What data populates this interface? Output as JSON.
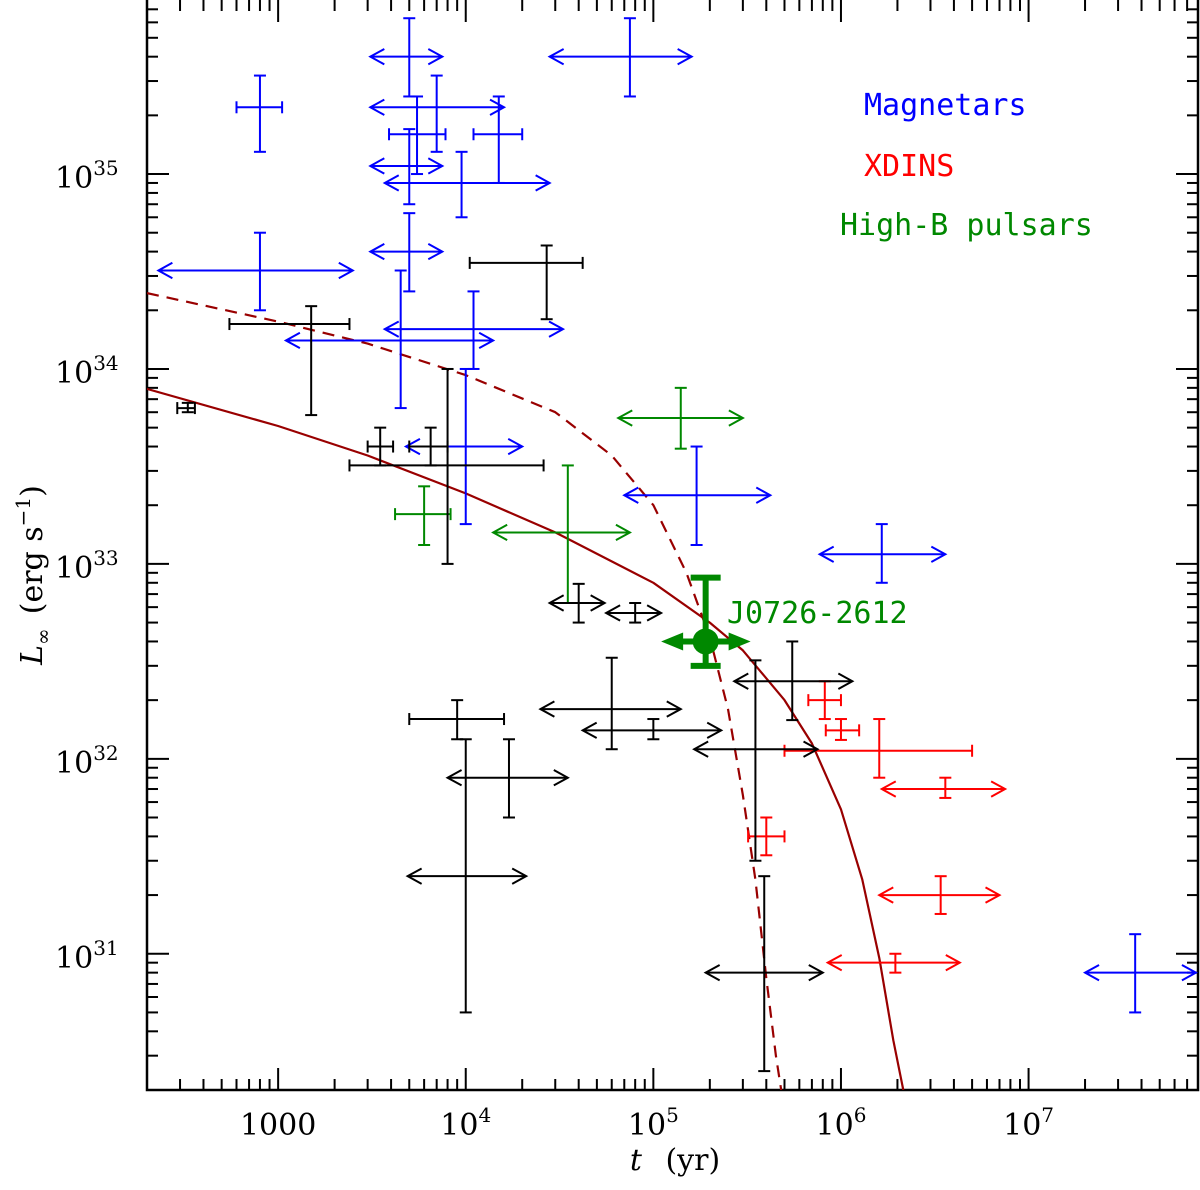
{
  "chart_data": {
    "type": "scatter",
    "xscale": "log",
    "yscale": "log",
    "xlim": [
      200,
      80000000
    ],
    "ylim": [
      2e+30,
      8e+35
    ],
    "xlabel": {
      "var": "t",
      "unit": "(yr)"
    },
    "ylabel": {
      "var": "L",
      "sub": "∞",
      "unit_prefix": "(erg s",
      "unit_exp": "−1",
      "unit_suffix": ")"
    },
    "x_ticks": [
      {
        "value": 1000,
        "base": "1000",
        "exp": ""
      },
      {
        "value": 10000,
        "base": "10",
        "exp": "4"
      },
      {
        "value": 100000,
        "base": "10",
        "exp": "5"
      },
      {
        "value": 1000000,
        "base": "10",
        "exp": "6"
      },
      {
        "value": 10000000,
        "base": "10",
        "exp": "7"
      }
    ],
    "y_ticks": [
      {
        "value": 1e+31,
        "base": "10",
        "exp": "31"
      },
      {
        "value": 1e+32,
        "base": "10",
        "exp": "32"
      },
      {
        "value": 1e+33,
        "base": "10",
        "exp": "33"
      },
      {
        "value": 1e+34,
        "base": "10",
        "exp": "34"
      },
      {
        "value": 1e+35,
        "base": "10",
        "exp": "35"
      }
    ],
    "legend": [
      {
        "label": "Magnetars",
        "color": "#0000ff"
      },
      {
        "label": "XDINS",
        "color": "#ff0000"
      },
      {
        "label": "High-B pulsars",
        "color": "#008800"
      }
    ],
    "colors": {
      "other": "#000000",
      "curve": "#990000"
    },
    "curves": [
      {
        "name": "cooling-curve-solid",
        "style": "solid",
        "points": [
          [
            200,
            7.9e+33
          ],
          [
            1000,
            5.1e+33
          ],
          [
            3000,
            3.6e+33
          ],
          [
            10000,
            2.3e+33
          ],
          [
            30000,
            1.45e+33
          ],
          [
            100000,
            8e+32
          ],
          [
            200000,
            5e+32
          ],
          [
            300000,
            3.6e+32
          ],
          [
            500000,
            2e+32
          ],
          [
            700000,
            1.2e+32
          ],
          [
            1000000,
            5.5e+31
          ],
          [
            1300000,
            2.4e+31
          ],
          [
            1600000,
            9.5e+30
          ],
          [
            1900000,
            3.6e+30
          ],
          [
            2150000,
            2e+30
          ]
        ]
      },
      {
        "name": "cooling-curve-dashed",
        "style": "dashed",
        "points": [
          [
            200,
            2.45e+34
          ],
          [
            1000,
            1.75e+34
          ],
          [
            3000,
            1.35e+34
          ],
          [
            10000,
            9.3e+33
          ],
          [
            30000,
            6e+33
          ],
          [
            60000,
            3.6e+33
          ],
          [
            100000,
            2e+33
          ],
          [
            150000,
            9e+32
          ],
          [
            200000,
            4.2e+32
          ],
          [
            250000,
            1.8e+32
          ],
          [
            300000,
            6.5e+31
          ],
          [
            350000,
            2.4e+31
          ],
          [
            400000,
            7.5e+30
          ],
          [
            450000,
            3e+30
          ],
          [
            480000,
            2e+30
          ]
        ]
      }
    ],
    "series": [
      {
        "name": "Magnetars",
        "color": "#0000ff",
        "points": [
          {
            "x": 800,
            "y": 2.2e+35,
            "xlo": 600,
            "xhi": 1050,
            "ylo": 1.3e+35,
            "yhi": 3.2e+35
          },
          {
            "x": 5000,
            "y": 4e+35,
            "xlo": 3100,
            "xhi": 7500,
            "ylo": 2.5e+35,
            "yhi": 6.3e+35,
            "xarrows": true
          },
          {
            "x": 5500,
            "y": 1.6e+35,
            "xlo": 3900,
            "xhi": 7800,
            "ylo": 1e+35,
            "yhi": 2.5e+35
          },
          {
            "x": 5000,
            "y": 1.1e+35,
            "xlo": 3100,
            "xhi": 7500,
            "ylo": 7e+34,
            "yhi": 1.7e+35,
            "xarrows": true
          },
          {
            "x": 7000,
            "y": 2.2e+35,
            "xlo": 3100,
            "xhi": 16000,
            "ylo": 1.3e+35,
            "yhi": 3.2e+35,
            "xarrows": true
          },
          {
            "x": 15000,
            "y": 1.6e+35,
            "xlo": 11000,
            "xhi": 20000,
            "ylo": 9e+34,
            "yhi": 2.5e+35
          },
          {
            "x": 9500,
            "y": 9e+34,
            "xlo": 3700,
            "xhi": 28000,
            "ylo": 6e+34,
            "yhi": 1.3e+35,
            "xarrows": true
          },
          {
            "x": 75000,
            "y": 4e+35,
            "xlo": 28000,
            "xhi": 160000,
            "ylo": 2.5e+35,
            "yhi": 6.3e+35,
            "xarrows": true
          },
          {
            "x": 800,
            "y": 3.2e+34,
            "xlo": 230,
            "xhi": 2500,
            "ylo": 2e+34,
            "yhi": 5e+34,
            "xarrows": true
          },
          {
            "x": 5000,
            "y": 4e+34,
            "xlo": 3100,
            "xhi": 7500,
            "ylo": 2.5e+34,
            "yhi": 6.3e+34,
            "xarrows": true
          },
          {
            "x": 4500,
            "y": 1.4e+34,
            "xlo": 1100,
            "xhi": 14000,
            "ylo": 6.3e+33,
            "yhi": 3.2e+34,
            "xarrows": true
          },
          {
            "x": 11000,
            "y": 1.6e+34,
            "xlo": 3700,
            "xhi": 33000,
            "ylo": 1e+34,
            "yhi": 2.5e+34,
            "xarrows": true
          },
          {
            "x": 10000,
            "y": 4e+33,
            "xlo": 4800,
            "xhi": 20000,
            "ylo": 1.6e+33,
            "yhi": 1e+34,
            "xarrows": true
          },
          {
            "x": 170000,
            "y": 2.25e+33,
            "xlo": 70000,
            "xhi": 420000,
            "ylo": 1.25e+33,
            "yhi": 4e+33,
            "xarrows": true
          },
          {
            "x": 1650000,
            "y": 1.12e+33,
            "xlo": 770000,
            "xhi": 3600000,
            "ylo": 8e+32,
            "yhi": 1.6e+33,
            "xarrows": true
          },
          {
            "x": 37000000,
            "y": 8e+30,
            "xlo": 20000000,
            "xhi": 78000000,
            "ylo": 5e+30,
            "yhi": 1.26e+31,
            "xarrows": true
          }
        ]
      },
      {
        "name": "XDINS",
        "color": "#ff0000",
        "points": [
          {
            "x": 820000,
            "y": 2e+32,
            "xlo": 670000,
            "xhi": 1000000,
            "ylo": 1.6e+32,
            "yhi": 2.5e+32
          },
          {
            "x": 1000000,
            "y": 1.4e+32,
            "xlo": 830000,
            "xhi": 1250000,
            "ylo": 1.25e+32,
            "yhi": 1.6e+32
          },
          {
            "x": 1600000,
            "y": 1.1e+32,
            "xlo": 500000,
            "xhi": 5000000,
            "ylo": 8e+31,
            "yhi": 1.6e+32
          },
          {
            "x": 3600000,
            "y": 7e+31,
            "xlo": 1650000,
            "xhi": 7500000,
            "ylo": 6.3e+31,
            "yhi": 8e+31,
            "xarrows": true
          },
          {
            "x": 400000,
            "y": 4e+31,
            "xlo": 320000,
            "xhi": 500000,
            "ylo": 3.2e+31,
            "yhi": 5e+31
          },
          {
            "x": 3400000,
            "y": 2e+31,
            "xlo": 1600000,
            "xhi": 7000000,
            "ylo": 1.6e+31,
            "yhi": 2.5e+31,
            "xarrows": true
          },
          {
            "x": 1950000,
            "y": 9e+30,
            "xlo": 850000,
            "xhi": 4300000,
            "ylo": 8e+30,
            "yhi": 1e+31,
            "xarrows": true
          }
        ]
      },
      {
        "name": "High-B pulsars",
        "color": "#008800",
        "points": [
          {
            "x": 140000,
            "y": 5.6e+33,
            "xlo": 65000,
            "xhi": 300000,
            "ylo": 3.9e+33,
            "yhi": 8e+33,
            "xarrows": true
          },
          {
            "x": 6000,
            "y": 1.8e+33,
            "xlo": 4200,
            "xhi": 8300,
            "ylo": 1.25e+33,
            "yhi": 2.5e+33
          },
          {
            "x": 35000,
            "y": 1.45e+33,
            "xlo": 14000,
            "xhi": 75000,
            "ylo": 6.3e+32,
            "yhi": 3.2e+33,
            "xarrows": true
          }
        ]
      },
      {
        "name": "Other",
        "color": "#000000",
        "points": [
          {
            "x": 330,
            "y": 6.3e+33,
            "xlo": 290,
            "xhi": 360,
            "ylo": 6e+33,
            "yhi": 6.7e+33
          },
          {
            "x": 1500,
            "y": 1.7e+34,
            "xlo": 550,
            "xhi": 2400,
            "ylo": 5.8e+33,
            "yhi": 2.1e+34
          },
          {
            "x": 27000,
            "y": 3.5e+34,
            "xlo": 10500,
            "xhi": 42000,
            "ylo": 1.8e+34,
            "yhi": 4.3e+34
          },
          {
            "x": 3500,
            "y": 4e+33,
            "xlo": 3000,
            "xhi": 4100,
            "ylo": 3.2e+33,
            "yhi": 5e+33
          },
          {
            "x": 6500,
            "y": 4e+33,
            "xlo": 5000,
            "xhi": 8000,
            "ylo": 3.2e+33,
            "yhi": 5e+33
          },
          {
            "x": 8000,
            "y": 3.2e+33,
            "xlo": 2400,
            "xhi": 26000,
            "ylo": 1e+33,
            "yhi": 1e+34
          },
          {
            "x": 40000,
            "y": 6.3e+32,
            "xlo": 28000,
            "xhi": 55000,
            "ylo": 5e+32,
            "yhi": 7.9e+32,
            "xarrows": true
          },
          {
            "x": 80000,
            "y": 5.6e+32,
            "xlo": 56000,
            "xhi": 110000,
            "ylo": 5e+32,
            "yhi": 6.3e+32,
            "xarrows": true
          },
          {
            "x": 60000,
            "y": 1.8e+32,
            "xlo": 25000,
            "xhi": 140000,
            "ylo": 1.12e+32,
            "yhi": 3.3e+32,
            "xarrows": true
          },
          {
            "x": 100000,
            "y": 1.4e+32,
            "xlo": 42000,
            "xhi": 230000,
            "ylo": 1.26e+32,
            "yhi": 1.6e+32,
            "xarrows": true
          },
          {
            "x": 9000,
            "y": 1.6e+32,
            "xlo": 5000,
            "xhi": 16000,
            "ylo": 1.26e+32,
            "yhi": 2e+32
          },
          {
            "x": 17000,
            "y": 8e+31,
            "xlo": 8000,
            "xhi": 35000,
            "ylo": 5e+31,
            "yhi": 1.26e+32,
            "xarrows": true
          },
          {
            "x": 10000,
            "y": 2.5e+31,
            "xlo": 4900,
            "xhi": 21000,
            "ylo": 5e+30,
            "yhi": 1.26e+32,
            "xarrows": true
          },
          {
            "x": 550000,
            "y": 2.5e+32,
            "xlo": 270000,
            "xhi": 1150000,
            "ylo": 1.58e+32,
            "yhi": 4e+32,
            "xarrows": true
          },
          {
            "x": 350000,
            "y": 1.12e+32,
            "xlo": 165000,
            "xhi": 750000,
            "ylo": 3e+31,
            "yhi": 3.2e+32,
            "xarrows": true
          },
          {
            "x": 390000,
            "y": 8e+30,
            "xlo": 190000,
            "xhi": 800000,
            "ylo": 2.5e+30,
            "yhi": 2.5e+31,
            "xarrows": true
          }
        ]
      }
    ],
    "highlight": {
      "label": "J0726-2612",
      "color": "#008800",
      "x": 190000,
      "y": 4e+32,
      "xlo": 110000,
      "xhi": 330000,
      "ylo": 3e+32,
      "yhi": 8.5e+32
    }
  }
}
